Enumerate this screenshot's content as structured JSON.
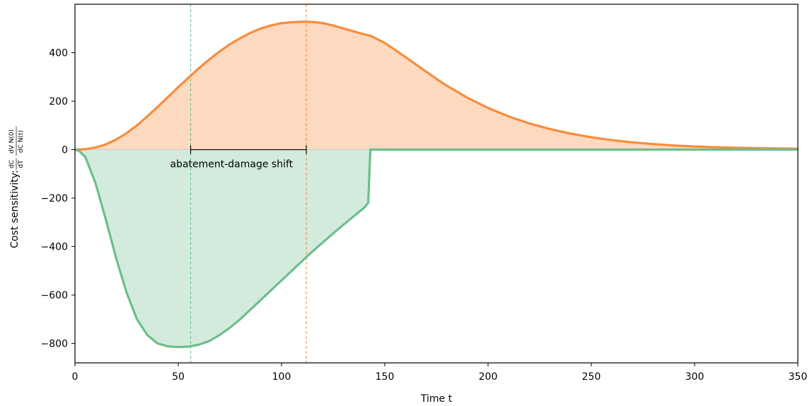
{
  "chart_data": {
    "type": "area",
    "xlabel": "Time t",
    "ylabel_text": "Cost sensitivity: ",
    "ylabel_frac1": {
      "num": "dC",
      "den": "dT"
    },
    "ylabel_frac2": {
      "num": "dV N(0)",
      "den": "dC N(t)"
    },
    "xlim": [
      0,
      350
    ],
    "ylim": [
      -880,
      600
    ],
    "xticks": [
      0,
      50,
      100,
      150,
      200,
      250,
      300,
      350
    ],
    "yticks": [
      -800,
      -600,
      -400,
      -200,
      0,
      200,
      400
    ],
    "grid": false,
    "series": [
      {
        "color": "#f78c3c",
        "fill": "#fdd9bf",
        "x": [
          0,
          5,
          10,
          15,
          20,
          25,
          30,
          35,
          40,
          45,
          50,
          55,
          60,
          65,
          70,
          75,
          80,
          85,
          90,
          95,
          100,
          105,
          110,
          115,
          120,
          125,
          130,
          135,
          140,
          143,
          145,
          150,
          155,
          160,
          165,
          170,
          175,
          180,
          190,
          200,
          210,
          220,
          230,
          240,
          250,
          260,
          270,
          280,
          290,
          300,
          310,
          320,
          330,
          340,
          350
        ],
        "values": [
          0,
          2,
          9,
          22,
          42,
          68,
          100,
          137,
          176,
          217,
          258,
          297,
          336,
          372,
          405,
          435,
          460,
          482,
          500,
          513,
          522,
          526,
          528,
          527,
          522,
          512,
          500,
          488,
          476,
          470,
          462,
          440,
          412,
          382,
          352,
          322,
          292,
          264,
          214,
          172,
          137,
          108,
          85,
          66,
          51,
          39,
          30,
          23,
          17,
          13,
          10,
          8,
          6,
          5,
          4
        ]
      },
      {
        "color": "#6bbf8c",
        "fill": "#d3ebdc",
        "x": [
          0,
          2,
          5,
          10,
          15,
          20,
          25,
          30,
          35,
          40,
          45,
          50,
          55,
          60,
          65,
          70,
          75,
          80,
          85,
          90,
          95,
          100,
          105,
          110,
          115,
          120,
          125,
          130,
          135,
          140,
          142,
          143,
          150,
          200,
          250,
          300,
          350
        ],
        "values": [
          0,
          -5,
          -30,
          -140,
          -290,
          -450,
          -590,
          -700,
          -765,
          -800,
          -812,
          -815,
          -813,
          -805,
          -790,
          -765,
          -735,
          -700,
          -660,
          -620,
          -580,
          -540,
          -500,
          -460,
          -420,
          -383,
          -346,
          -310,
          -275,
          -240,
          -220,
          0,
          0,
          0,
          0,
          0,
          0
        ]
      }
    ],
    "vlines": [
      {
        "x": 56,
        "color": "#6bbf8c"
      },
      {
        "x": 112,
        "color": "#f78c3c"
      }
    ],
    "annotation": {
      "text": "abatement-damage shift",
      "x1": 56,
      "x2": 112,
      "y": 0
    }
  }
}
